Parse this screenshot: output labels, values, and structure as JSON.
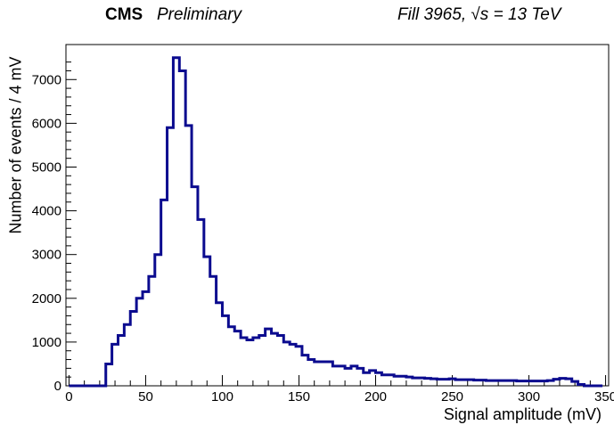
{
  "header": {
    "experiment": "CMS",
    "status": "Preliminary",
    "run_info": "Fill 3965, √s = 13 TeV"
  },
  "colors": {
    "line": "#0b0b8f",
    "axis": "#000000"
  },
  "chart_data": {
    "type": "histogram",
    "xlabel": "Signal amplitude (mV)",
    "ylabel": "Number of events / 4 mV",
    "xlim": [
      -2,
      352
    ],
    "ylim": [
      0,
      7800
    ],
    "x_ticks": [
      "0",
      "50",
      "100",
      "150",
      "200",
      "250",
      "300",
      "350"
    ],
    "y_ticks": [
      "0",
      "1000",
      "2000",
      "3000",
      "4000",
      "5000",
      "6000",
      "7000"
    ],
    "bin_width": 4,
    "bin_start": 0,
    "values": [
      0,
      0,
      0,
      0,
      0,
      0,
      500,
      950,
      1150,
      1400,
      1700,
      2000,
      2150,
      2500,
      3000,
      4250,
      5900,
      7500,
      7200,
      5950,
      4550,
      3800,
      2950,
      2500,
      1900,
      1600,
      1350,
      1250,
      1100,
      1050,
      1100,
      1150,
      1300,
      1200,
      1150,
      1000,
      950,
      900,
      700,
      600,
      550,
      550,
      550,
      450,
      450,
      400,
      450,
      400,
      300,
      350,
      300,
      250,
      250,
      220,
      220,
      200,
      180,
      180,
      170,
      160,
      150,
      150,
      160,
      140,
      140,
      140,
      130,
      130,
      120,
      120,
      120,
      120,
      120,
      110,
      110,
      110,
      110,
      110,
      120,
      150,
      170,
      160,
      100,
      30,
      0,
      0,
      0
    ]
  }
}
